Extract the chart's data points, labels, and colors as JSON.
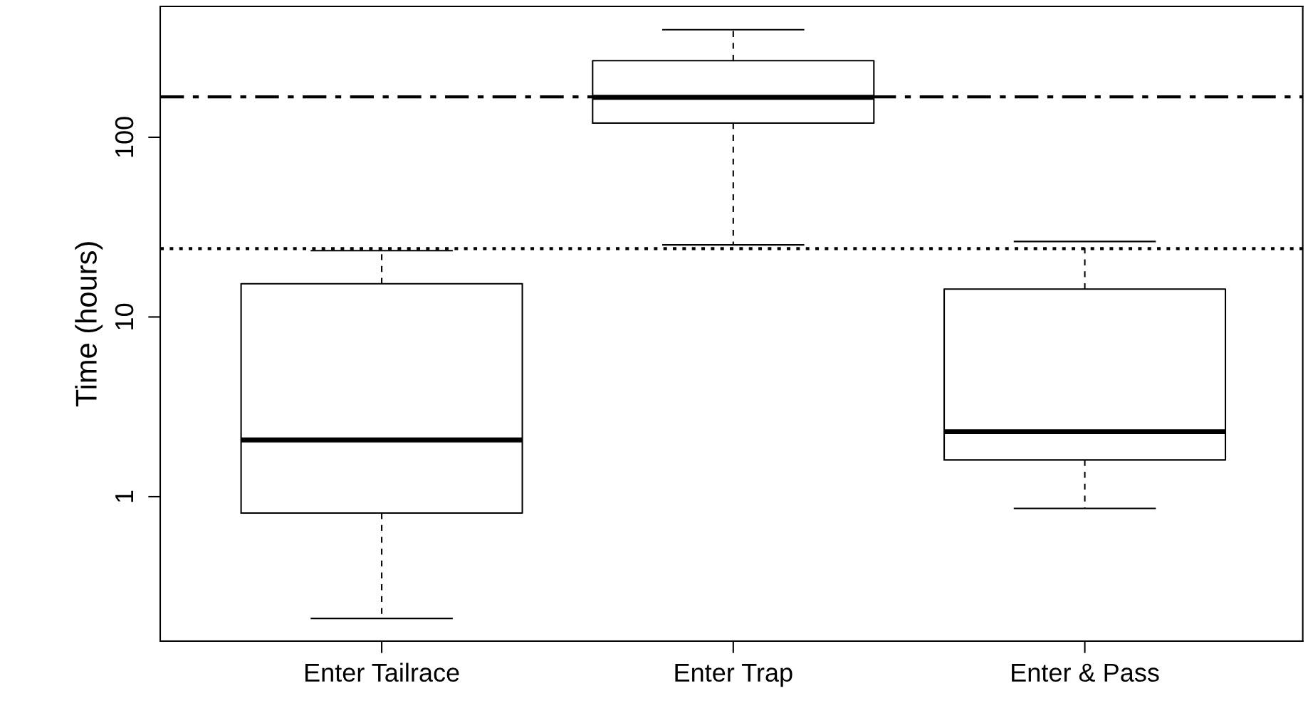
{
  "chart_data": {
    "type": "box",
    "ylabel": "Time (hours)",
    "log": "y",
    "categories": [
      "Enter Tailrace",
      "Enter Trap",
      "Enter & Pass"
    ],
    "boxes": [
      {
        "low": 0.21,
        "q1": 0.81,
        "median": 2.07,
        "q3": 15.3,
        "high": 23.4
      },
      {
        "low": 25.2,
        "q1": 120,
        "median": 167,
        "q3": 267,
        "high": 397
      },
      {
        "low": 0.86,
        "q1": 1.6,
        "median": 2.3,
        "q3": 14.3,
        "high": 26.3
      }
    ],
    "ylim": [
      0.157,
      535
    ],
    "yticks": [
      1,
      10,
      100
    ],
    "ref_lines": [
      {
        "axis": "y",
        "value": 168,
        "color": "#000000",
        "line_style": "dashdot"
      },
      {
        "axis": "y",
        "value": 24,
        "color": "#000000",
        "line_style": "dotted"
      }
    ],
    "grid": false,
    "legend": false
  }
}
